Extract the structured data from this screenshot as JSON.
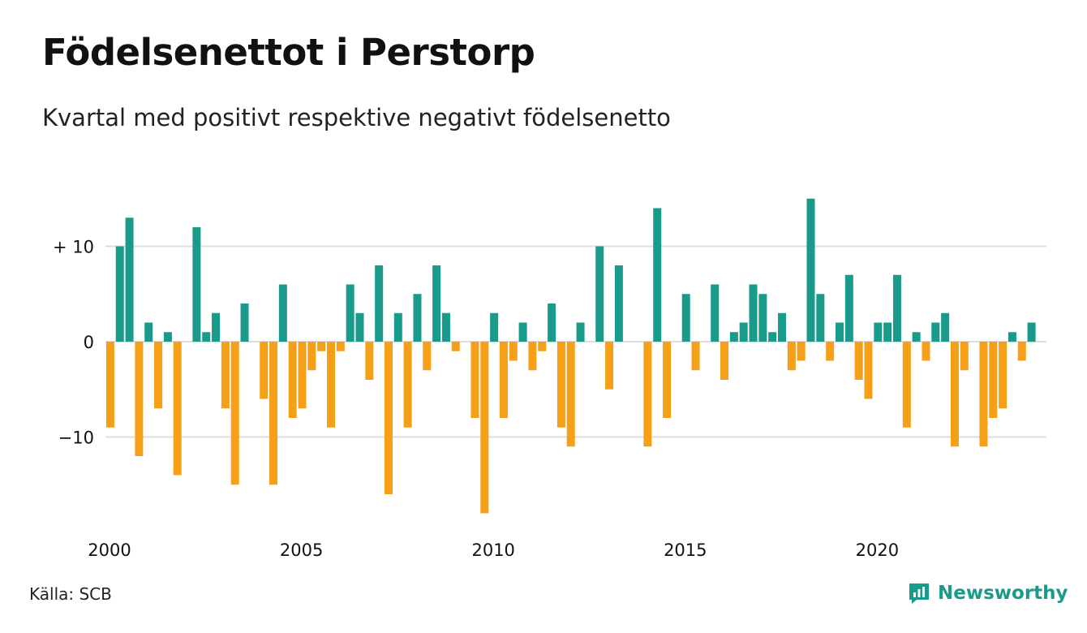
{
  "header": {
    "title": "Födelsenettot i Perstorp",
    "subtitle": "Kvartal med positivt respektive negativt födelsenetto"
  },
  "footer": {
    "source": "Källa: SCB",
    "brand": "Newsworthy"
  },
  "icons": {
    "brand": "newsworthy-logo-icon"
  },
  "colors": {
    "positive": "#1a9a8a",
    "negative": "#f6a01a",
    "grid": "#dddddd",
    "text": "#111111"
  },
  "chart_data": {
    "type": "bar",
    "title": "Födelsenettot i Perstorp",
    "subtitle": "Kvartal med positivt respektive negativt födelsenetto",
    "xlabel": "",
    "ylabel": "",
    "x_start": 2000,
    "periods_per_year": 4,
    "values": [
      -9,
      10,
      13,
      -12,
      2,
      -7,
      1,
      -14,
      0,
      12,
      1,
      3,
      -7,
      -15,
      4,
      0,
      -6,
      -15,
      6,
      -8,
      -7,
      -3,
      -1,
      -9,
      -1,
      6,
      3,
      -4,
      8,
      -16,
      3,
      -9,
      5,
      -3,
      8,
      3,
      -1,
      0,
      -8,
      -18,
      3,
      -8,
      -2,
      2,
      -3,
      -1,
      4,
      -9,
      -11,
      2,
      0,
      10,
      -5,
      8,
      0,
      0,
      -11,
      14,
      -8,
      0,
      5,
      -3,
      0,
      6,
      -4,
      1,
      2,
      6,
      5,
      1,
      3,
      -3,
      -2,
      15,
      5,
      -2,
      2,
      7,
      -4,
      -6,
      2,
      2,
      7,
      -9,
      1,
      -2,
      2,
      3,
      -11,
      -3,
      0,
      -11,
      -8,
      -7,
      1,
      -2,
      2
    ],
    "ylim": [
      -18,
      15
    ],
    "y_ticks": [
      {
        "value": 10,
        "label": "+ 10"
      },
      {
        "value": 0,
        "label": "0"
      },
      {
        "value": -10,
        "label": "−10"
      }
    ],
    "x_ticks": [
      {
        "value": 2000,
        "label": "2000"
      },
      {
        "value": 2005,
        "label": "2005"
      },
      {
        "value": 2010,
        "label": "2010"
      },
      {
        "value": 2015,
        "label": "2015"
      },
      {
        "value": 2020,
        "label": "2020"
      }
    ],
    "grid": true,
    "legend": "none"
  }
}
